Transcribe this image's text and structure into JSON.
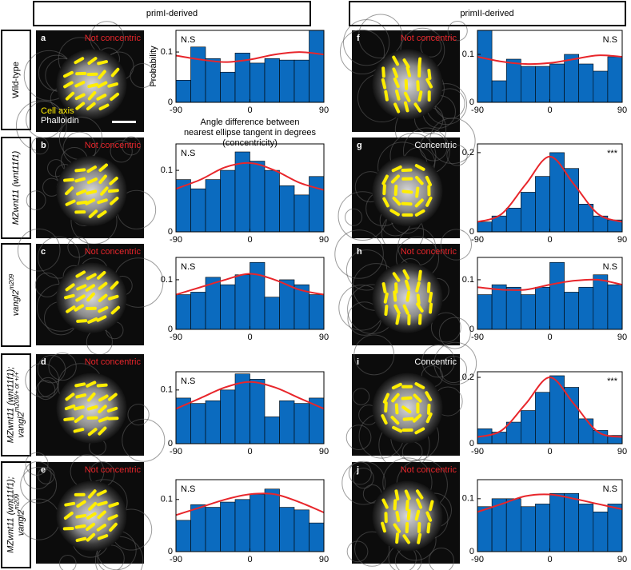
{
  "column_headers": [
    "primI-derived",
    "primII-derived"
  ],
  "rows": [
    {
      "lines": [
        {
          "text": "Wild-type"
        }
      ],
      "italic": false
    },
    {
      "lines": [
        {
          "text": "MZwnt11 (wnt11f1)"
        }
      ],
      "italic": true
    },
    {
      "lines": [
        {
          "text": "vangl2",
          "sup": "m209"
        }
      ],
      "italic": true
    },
    {
      "lines": [
        {
          "text": "MZwnt11 (wnt11f1);"
        },
        {
          "text": "vangl2",
          "sup": "m209/+ or +/+"
        }
      ],
      "italic": true
    },
    {
      "lines": [
        {
          "text": "MZwnt11 (wnt11f1);"
        },
        {
          "text": "vangl2",
          "sup": "m209"
        }
      ],
      "italic": true
    }
  ],
  "panels": [
    {
      "letter": "a",
      "status": "Not concentric",
      "status_color": "#e8262b"
    },
    {
      "letter": "b",
      "status": "Not concentric",
      "status_color": "#e8262b"
    },
    {
      "letter": "c",
      "status": "Not concentric",
      "status_color": "#e8262b"
    },
    {
      "letter": "d",
      "status": "Not concentric",
      "status_color": "#e8262b"
    },
    {
      "letter": "e",
      "status": "Not concentric",
      "status_color": "#e8262b"
    },
    {
      "letter": "f",
      "status": "Not concentric",
      "status_color": "#e8262b"
    },
    {
      "letter": "g",
      "status": "Concentric",
      "status_color": "#ffffff"
    },
    {
      "letter": "h",
      "status": "Not concentric",
      "status_color": "#e8262b"
    },
    {
      "letter": "i",
      "status": "Concentric",
      "status_color": "#ffffff"
    },
    {
      "letter": "j",
      "status": "Not concentric",
      "status_color": "#e8262b"
    }
  ],
  "image_legend": {
    "cell_axis": "Cell axis",
    "phalloidin": "Phalloidin"
  },
  "chart_data": [
    {
      "type": "histogram",
      "ylabel": "Probability",
      "xlabel": [
        "Angle difference between",
        "nearest ellipse tangent in degrees",
        "(concentricity)"
      ],
      "annotation": "N.S",
      "annotation_corner": "top-left",
      "bins": [
        -90,
        -72,
        -54,
        -36,
        -18,
        0,
        18,
        36,
        54,
        72,
        90
      ],
      "values": [
        0.044,
        0.11,
        0.087,
        0.06,
        0.098,
        0.078,
        0.087,
        0.084,
        0.084,
        0.143
      ],
      "color": "#0b6bbf",
      "fit": {
        "x": [
          -90,
          -60,
          -30,
          0,
          30,
          60,
          90
        ],
        "values": [
          0.093,
          0.085,
          0.08,
          0.085,
          0.095,
          0.1,
          0.095
        ],
        "color": "#e8262b"
      },
      "xlim": [
        -90,
        90
      ],
      "ylim": [
        0,
        0.143
      ],
      "xticks": [
        -90,
        0,
        90
      ],
      "yticks": [
        0,
        0.1
      ]
    },
    {
      "type": "histogram",
      "annotation": "N.S",
      "annotation_corner": "top-left",
      "bins": [
        -90,
        -72,
        -54,
        -36,
        -18,
        0,
        18,
        36,
        54,
        72,
        90
      ],
      "values": [
        0.085,
        0.07,
        0.085,
        0.1,
        0.13,
        0.115,
        0.1,
        0.075,
        0.06,
        0.09
      ],
      "color": "#0b6bbf",
      "fit": {
        "x": [
          -90,
          -60,
          -30,
          0,
          30,
          60,
          90
        ],
        "values": [
          0.07,
          0.085,
          0.105,
          0.112,
          0.1,
          0.08,
          0.068
        ],
        "color": "#e8262b"
      },
      "xlim": [
        -90,
        90
      ],
      "ylim": [
        0,
        0.143
      ],
      "xticks": [
        -90,
        0,
        90
      ],
      "yticks": [
        0,
        0.1
      ]
    },
    {
      "type": "histogram",
      "annotation": "N.S",
      "annotation_corner": "top-left",
      "bins": [
        -90,
        -72,
        -54,
        -36,
        -18,
        0,
        18,
        36,
        54,
        72,
        90
      ],
      "values": [
        0.07,
        0.075,
        0.105,
        0.09,
        0.11,
        0.135,
        0.065,
        0.1,
        0.09,
        0.07
      ],
      "color": "#0b6bbf",
      "fit": {
        "x": [
          -90,
          -60,
          -30,
          0,
          30,
          60,
          90
        ],
        "values": [
          0.07,
          0.085,
          0.1,
          0.112,
          0.1,
          0.08,
          0.07
        ],
        "color": "#e8262b"
      },
      "xlim": [
        -90,
        90
      ],
      "ylim": [
        0,
        0.145
      ],
      "xticks": [
        -90,
        0,
        90
      ],
      "yticks": [
        0,
        0.1
      ]
    },
    {
      "type": "histogram",
      "annotation": "N.S",
      "annotation_corner": "top-left",
      "bins": [
        -90,
        -72,
        -54,
        -36,
        -18,
        0,
        18,
        36,
        54,
        72,
        90
      ],
      "values": [
        0.085,
        0.075,
        0.08,
        0.1,
        0.13,
        0.12,
        0.05,
        0.08,
        0.075,
        0.085
      ],
      "color": "#0b6bbf",
      "fit": {
        "x": [
          -90,
          -60,
          -30,
          0,
          30,
          60,
          90
        ],
        "values": [
          0.065,
          0.085,
          0.105,
          0.115,
          0.105,
          0.085,
          0.065
        ],
        "color": "#e8262b"
      },
      "xlim": [
        -90,
        90
      ],
      "ylim": [
        0,
        0.134
      ],
      "xticks": [
        -90,
        0,
        90
      ],
      "yticks": [
        0,
        0.1
      ]
    },
    {
      "type": "histogram",
      "annotation": "N.S",
      "annotation_corner": "top-left",
      "bins": [
        -90,
        -72,
        -54,
        -36,
        -18,
        0,
        18,
        36,
        54,
        72,
        90
      ],
      "values": [
        0.06,
        0.09,
        0.085,
        0.095,
        0.1,
        0.11,
        0.12,
        0.085,
        0.08,
        0.055
      ],
      "color": "#0b6bbf",
      "fit": {
        "x": [
          -90,
          -60,
          -30,
          0,
          30,
          60,
          90
        ],
        "values": [
          0.07,
          0.085,
          0.1,
          0.11,
          0.11,
          0.095,
          0.075
        ],
        "color": "#e8262b"
      },
      "xlim": [
        -90,
        90
      ],
      "ylim": [
        0,
        0.138
      ],
      "xticks": [
        -90,
        0,
        90
      ],
      "yticks": [
        0,
        0.1
      ]
    },
    {
      "type": "histogram",
      "annotation": "N.S",
      "annotation_corner": "top-right",
      "bins": [
        -90,
        -72,
        -54,
        -36,
        -18,
        0,
        18,
        36,
        54,
        72,
        90
      ],
      "values": [
        0.15,
        0.045,
        0.09,
        0.075,
        0.075,
        0.08,
        0.1,
        0.08,
        0.065,
        0.095
      ],
      "color": "#0b6bbf",
      "fit": {
        "x": [
          -90,
          -60,
          -30,
          0,
          30,
          60,
          90
        ],
        "values": [
          0.095,
          0.085,
          0.08,
          0.082,
          0.09,
          0.098,
          0.095
        ],
        "color": "#e8262b"
      },
      "xlim": [
        -90,
        90
      ],
      "ylim": [
        0,
        0.15
      ],
      "xticks": [
        -90,
        0,
        90
      ],
      "yticks": [
        0,
        0.1
      ]
    },
    {
      "type": "histogram",
      "annotation": "***",
      "annotation_corner": "top-right",
      "bins": [
        -90,
        -72,
        -54,
        -36,
        -18,
        0,
        18,
        36,
        54,
        72,
        90
      ],
      "values": [
        0.025,
        0.04,
        0.06,
        0.1,
        0.14,
        0.2,
        0.16,
        0.07,
        0.04,
        0.03
      ],
      "color": "#0b6bbf",
      "fit": {
        "x": [
          -90,
          -60,
          -30,
          0,
          30,
          60,
          90
        ],
        "values": [
          0.025,
          0.045,
          0.12,
          0.19,
          0.12,
          0.045,
          0.025
        ],
        "color": "#e8262b"
      },
      "xlim": [
        -90,
        90
      ],
      "ylim": [
        0,
        0.222
      ],
      "xticks": [
        -90,
        0,
        90
      ],
      "yticks": [
        0,
        0.2
      ]
    },
    {
      "type": "histogram",
      "annotation": "N.S",
      "annotation_corner": "top-right",
      "bins": [
        -90,
        -72,
        -54,
        -36,
        -18,
        0,
        18,
        36,
        54,
        72,
        90
      ],
      "values": [
        0.07,
        0.09,
        0.085,
        0.07,
        0.085,
        0.135,
        0.075,
        0.085,
        0.11,
        0.09
      ],
      "color": "#0b6bbf",
      "fit": {
        "x": [
          -90,
          -60,
          -30,
          0,
          30,
          60,
          90
        ],
        "values": [
          0.085,
          0.08,
          0.08,
          0.09,
          0.098,
          0.1,
          0.09
        ],
        "color": "#e8262b"
      },
      "xlim": [
        -90,
        90
      ],
      "ylim": [
        0,
        0.145
      ],
      "xticks": [
        -90,
        0,
        90
      ],
      "yticks": [
        0,
        0.1
      ]
    },
    {
      "type": "histogram",
      "annotation": "***",
      "annotation_corner": "top-right",
      "bins": [
        -90,
        -72,
        -54,
        -36,
        -18,
        0,
        18,
        36,
        54,
        72,
        90
      ],
      "values": [
        0.045,
        0.035,
        0.065,
        0.1,
        0.155,
        0.205,
        0.17,
        0.075,
        0.04,
        0.025
      ],
      "color": "#0b6bbf",
      "fit": {
        "x": [
          -90,
          -60,
          -30,
          0,
          30,
          60,
          90
        ],
        "values": [
          0.02,
          0.04,
          0.12,
          0.2,
          0.12,
          0.035,
          0.02
        ],
        "color": "#e8262b"
      },
      "xlim": [
        -90,
        90
      ],
      "ylim": [
        0,
        0.217
      ],
      "xticks": [
        -90,
        0,
        90
      ],
      "yticks": [
        0,
        0.2
      ]
    },
    {
      "type": "histogram",
      "annotation": "N.S",
      "annotation_corner": "top-right",
      "bins": [
        -90,
        -72,
        -54,
        -36,
        -18,
        0,
        18,
        36,
        54,
        72,
        90
      ],
      "values": [
        0.085,
        0.1,
        0.1,
        0.085,
        0.09,
        0.11,
        0.11,
        0.09,
        0.075,
        0.09
      ],
      "color": "#0b6bbf",
      "fit": {
        "x": [
          -90,
          -60,
          -30,
          0,
          30,
          60,
          90
        ],
        "values": [
          0.075,
          0.09,
          0.105,
          0.108,
          0.1,
          0.09,
          0.08
        ],
        "color": "#e8262b"
      },
      "xlim": [
        -90,
        90
      ],
      "ylim": [
        0,
        0.136
      ],
      "xticks": [
        -90,
        0,
        90
      ],
      "yticks": [
        0,
        0.1
      ]
    }
  ]
}
